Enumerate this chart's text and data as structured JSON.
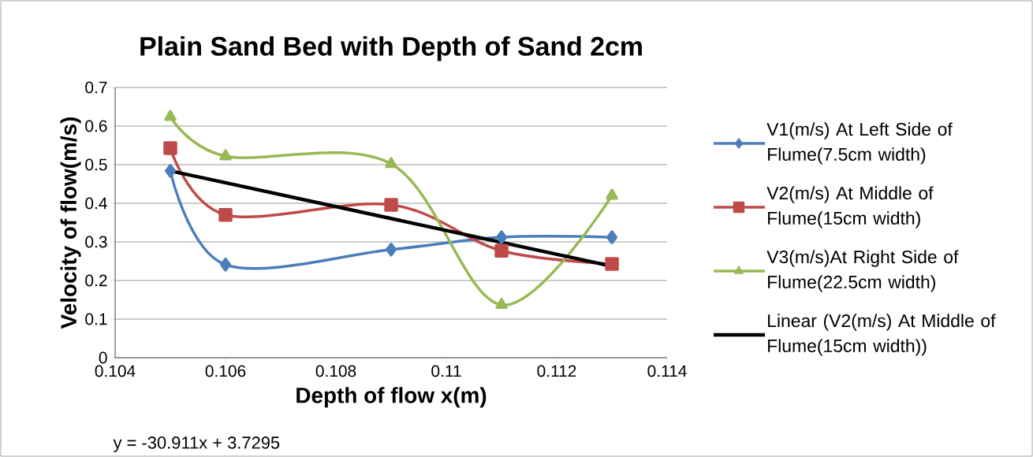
{
  "chart_data": {
    "type": "line",
    "title": "Plain Sand Bed with Depth of Sand 2cm",
    "xlabel": "Depth of flow x(m)",
    "ylabel": "Velocity of flow(m/s)",
    "x": [
      0.105,
      0.106,
      0.109,
      0.111,
      0.113
    ],
    "series": [
      {
        "name": "V1(m/s) At Left Side of Flume(7.5cm width)",
        "color": "#4a7ebb",
        "marker": "diamond",
        "values": [
          0.484,
          0.241,
          0.28,
          0.312,
          0.312
        ]
      },
      {
        "name": "V2(m/s) At Middle of Flume(15cm width)",
        "color": "#be4b48",
        "marker": "square",
        "values": [
          0.543,
          0.37,
          0.396,
          0.277,
          0.243
        ]
      },
      {
        "name": "V3(m/s)At Right Side of Flume(22.5cm width)",
        "color": "#98b954",
        "marker": "triangle",
        "values": [
          0.624,
          0.522,
          0.502,
          0.137,
          0.42
        ]
      },
      {
        "name": "Linear (V2(m/s) At Middle of Flume(15cm width))",
        "color": "#000000",
        "marker": "none",
        "x": [
          0.105,
          0.113
        ],
        "values": [
          0.484,
          0.237
        ]
      }
    ],
    "xlim": [
      0.104,
      0.114
    ],
    "xticks": [
      0.104,
      0.106,
      0.108,
      0.11,
      0.112,
      0.114
    ],
    "ylim": [
      0,
      0.7
    ],
    "yticks": [
      0,
      0.1,
      0.2,
      0.3,
      0.4,
      0.5,
      0.6,
      0.7
    ],
    "grid": "y",
    "legend": "right",
    "annotations": [
      "y = -30.911x + 3.7295"
    ]
  }
}
